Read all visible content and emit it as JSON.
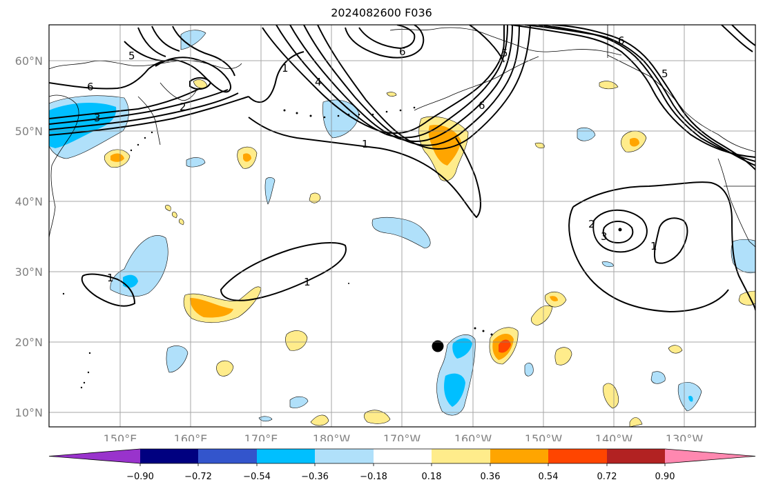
{
  "title": "2024082600 F036",
  "axes": {
    "lon_ticks": [
      "150°E",
      "160°E",
      "170°E",
      "180°W",
      "170°W",
      "160°W",
      "150°W",
      "140°W",
      "130°W"
    ],
    "lat_ticks": [
      "10°N",
      "20°N",
      "30°N",
      "40°N",
      "50°N",
      "60°N"
    ],
    "tick_label_color": "#808080"
  },
  "contour_labels": [
    "6",
    "5",
    "3",
    "2",
    "1",
    "4",
    "5",
    "6",
    "6",
    "5",
    "1",
    "2",
    "3",
    "1",
    "1",
    "1",
    "6"
  ],
  "colorbar": {
    "colors": [
      "#9933cc",
      "#000080",
      "#3355cc",
      "#00bfff",
      "#b0e0fa",
      "#ffffff",
      "#ffec8b",
      "#ffa500",
      "#ff4500",
      "#b22222",
      "#ff88b0"
    ],
    "tick_labels": [
      "−0.90",
      "−0.72",
      "−0.54",
      "−0.36",
      "−0.18",
      "0.18",
      "0.36",
      "0.54",
      "0.72",
      "0.90"
    ]
  },
  "marker": {
    "label": "black-dot"
  }
}
